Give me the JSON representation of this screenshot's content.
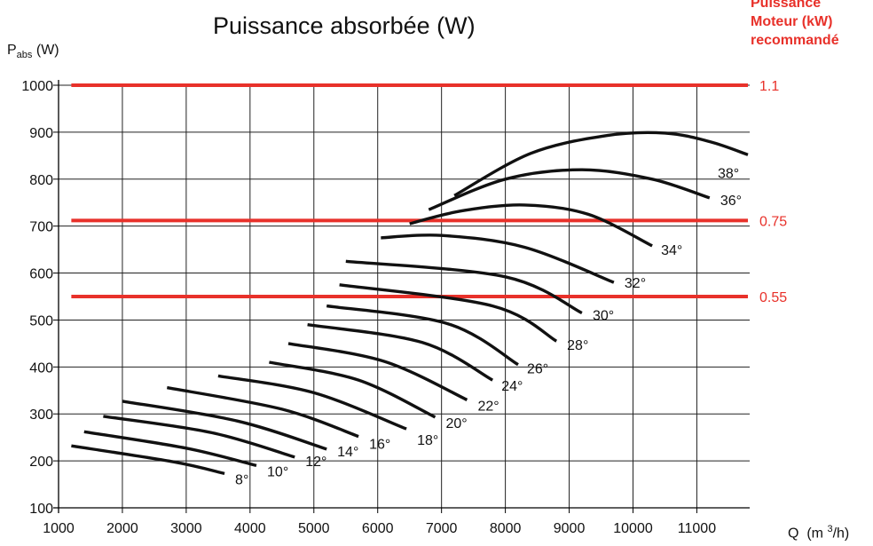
{
  "chart_data": {
    "type": "line",
    "title": "Puissance absorbée (W)",
    "ylabel_main": "P",
    "ylabel_sub": "abs",
    "ylabel_unit": " (W)",
    "xlabel_main": "Q",
    "xlabel_unit": "(m",
    "xlabel_sup": "3",
    "xlabel_end": "/h)",
    "motor_header": [
      "Puissance",
      "Moteur (kW)",
      "recommandé"
    ],
    "xlim": [
      1000,
      11800
    ],
    "ylim": [
      100,
      1000
    ],
    "x_ticks": [
      1000,
      2000,
      3000,
      4000,
      5000,
      6000,
      7000,
      8000,
      9000,
      10000,
      11000
    ],
    "y_ticks": [
      100,
      200,
      300,
      400,
      500,
      600,
      700,
      800,
      900,
      1000
    ],
    "grid": true,
    "colors": {
      "curve": "#111111",
      "threshold": "#e8312a",
      "grid": "#222222"
    },
    "thresholds": [
      {
        "y": 1000,
        "label": "1.1"
      },
      {
        "y": 712,
        "label": "0.75"
      },
      {
        "y": 550,
        "label": "0.55"
      }
    ],
    "series": [
      {
        "name": "8°",
        "points": [
          [
            1200,
            232
          ],
          [
            2800,
            198
          ],
          [
            3600,
            173
          ]
        ]
      },
      {
        "name": "10°",
        "points": [
          [
            1400,
            262
          ],
          [
            3000,
            227
          ],
          [
            4100,
            190
          ]
        ]
      },
      {
        "name": "12°",
        "points": [
          [
            1700,
            295
          ],
          [
            3400,
            260
          ],
          [
            4700,
            208
          ]
        ]
      },
      {
        "name": "14°",
        "points": [
          [
            2000,
            327
          ],
          [
            3800,
            285
          ],
          [
            5200,
            225
          ]
        ]
      },
      {
        "name": "16°",
        "points": [
          [
            2700,
            356
          ],
          [
            4500,
            310
          ],
          [
            5700,
            252
          ]
        ]
      },
      {
        "name": "18°",
        "points": [
          [
            3500,
            381
          ],
          [
            5000,
            345
          ],
          [
            6450,
            268
          ]
        ]
      },
      {
        "name": "20°",
        "points": [
          [
            4300,
            410
          ],
          [
            5700,
            372
          ],
          [
            6900,
            293
          ]
        ]
      },
      {
        "name": "22°",
        "points": [
          [
            4600,
            450
          ],
          [
            6100,
            412
          ],
          [
            7400,
            330
          ]
        ]
      },
      {
        "name": "24°",
        "points": [
          [
            4900,
            490
          ],
          [
            6700,
            452
          ],
          [
            7800,
            372
          ]
        ]
      },
      {
        "name": "26°",
        "points": [
          [
            5200,
            530
          ],
          [
            7100,
            492
          ],
          [
            8200,
            405
          ]
        ]
      },
      {
        "name": "28°",
        "points": [
          [
            5400,
            575
          ],
          [
            7800,
            530
          ],
          [
            8800,
            455
          ]
        ]
      },
      {
        "name": "30°",
        "points": [
          [
            5500,
            625
          ],
          [
            8000,
            592
          ],
          [
            9200,
            515
          ]
        ]
      },
      {
        "name": "32°",
        "points": [
          [
            6050,
            675
          ],
          [
            7000,
            680
          ],
          [
            8300,
            655
          ],
          [
            9700,
            580
          ]
        ]
      },
      {
        "name": "34°",
        "points": [
          [
            6500,
            705
          ],
          [
            7300,
            732
          ],
          [
            8300,
            745
          ],
          [
            9300,
            725
          ],
          [
            10300,
            658
          ]
        ]
      },
      {
        "name": "36°",
        "points": [
          [
            6800,
            735
          ],
          [
            8000,
            800
          ],
          [
            9200,
            820
          ],
          [
            10300,
            800
          ],
          [
            11200,
            760
          ]
        ]
      },
      {
        "name": "38°",
        "points": [
          [
            7200,
            765
          ],
          [
            8400,
            855
          ],
          [
            9600,
            893
          ],
          [
            10500,
            898
          ],
          [
            11200,
            880
          ],
          [
            11800,
            852
          ]
        ]
      }
    ]
  }
}
